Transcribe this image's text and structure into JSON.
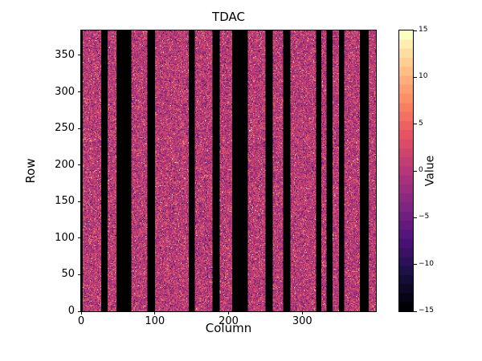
{
  "chart_data": {
    "type": "heatmap",
    "title": "TDAC",
    "xlabel": "Column",
    "ylabel": "Row",
    "colorbar_label": "Value",
    "ncols": 400,
    "nrows": 384,
    "xlim": [
      0,
      400
    ],
    "ylim": [
      0,
      384
    ],
    "vmin": -15,
    "vmax": 15,
    "x_ticks": [
      0,
      100,
      200,
      300
    ],
    "y_ticks": [
      0,
      50,
      100,
      150,
      200,
      250,
      300,
      350
    ],
    "colorbar_ticks": [
      15,
      10,
      5,
      0,
      -5,
      -10,
      -15
    ],
    "colorbar_tick_labels": [
      "15",
      "10",
      "5",
      "0",
      "−5",
      "−10",
      "−15"
    ],
    "colorbar_levels": 31,
    "colormap": "magma",
    "colormap_anchors": [
      [
        0.0,
        [
          0,
          0,
          4
        ]
      ],
      [
        0.125,
        [
          28,
          16,
          68
        ]
      ],
      [
        0.25,
        [
          79,
          18,
          123
        ]
      ],
      [
        0.375,
        [
          129,
          37,
          129
        ]
      ],
      [
        0.5,
        [
          181,
          54,
          122
        ]
      ],
      [
        0.625,
        [
          229,
          80,
          100
        ]
      ],
      [
        0.75,
        [
          251,
          135,
          97
        ]
      ],
      [
        0.875,
        [
          254,
          194,
          135
        ]
      ],
      [
        1.0,
        [
          252,
          253,
          191
        ]
      ]
    ],
    "masked_color": "#000000",
    "background_color": "#ffffff",
    "masked_column_ranges": [
      [
        0,
        2
      ],
      [
        27,
        36
      ],
      [
        48,
        68
      ],
      [
        90,
        100
      ],
      [
        146,
        154
      ],
      [
        178,
        188
      ],
      [
        205,
        226
      ],
      [
        250,
        260
      ],
      [
        274,
        284
      ],
      [
        319,
        326
      ],
      [
        333,
        341
      ],
      [
        350,
        357
      ],
      [
        378,
        390
      ]
    ],
    "noise": {
      "mean": 0.3,
      "std": 3.2,
      "outlier_prob": 0.05,
      "outlier_bright_fraction": 0.65,
      "values_are_integers": true
    },
    "grid": false,
    "legend": "none (colorbar on right)"
  }
}
